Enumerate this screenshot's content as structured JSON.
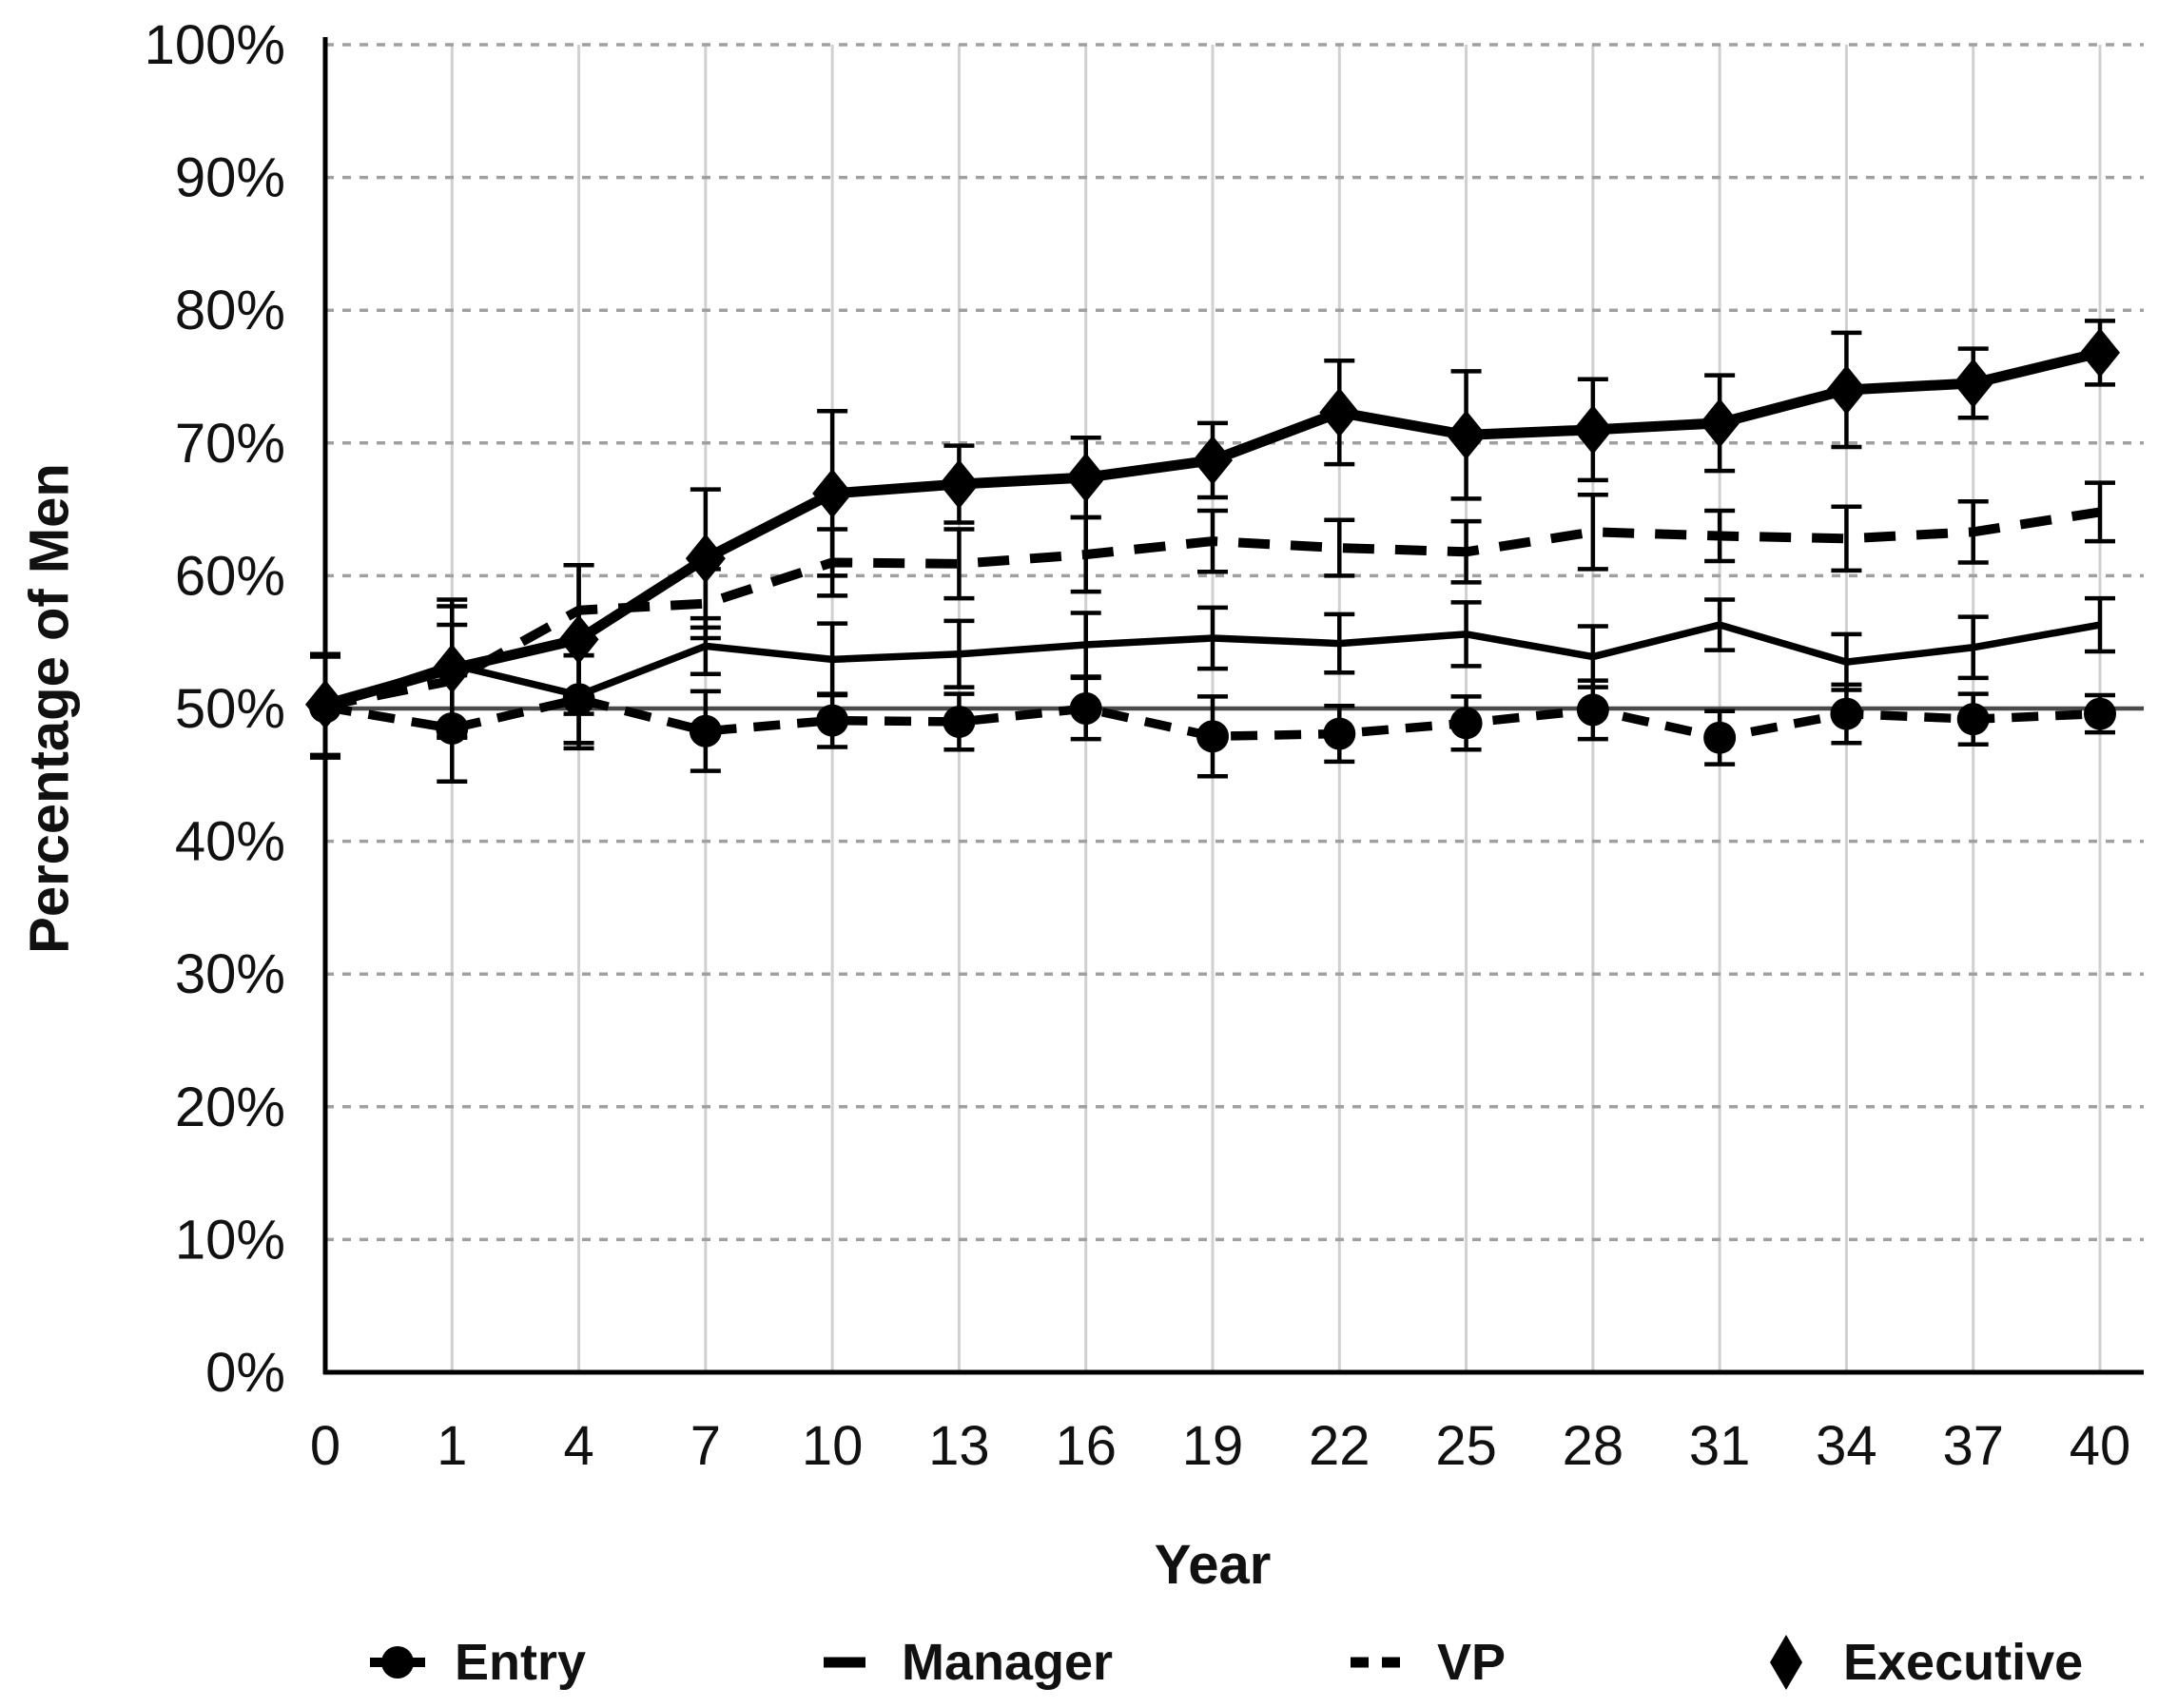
{
  "chart_data": {
    "type": "line",
    "title": "",
    "xlabel": "Year",
    "ylabel": "Percentage of Men",
    "x_axis_type": "categorical",
    "x_categories": [
      "0",
      "1",
      "4",
      "7",
      "10",
      "13",
      "16",
      "19",
      "22",
      "25",
      "28",
      "31",
      "34",
      "37",
      "40"
    ],
    "y_tick_labels": [
      "0%",
      "10%",
      "20%",
      "30%",
      "40%",
      "50%",
      "60%",
      "70%",
      "80%",
      "90%",
      "100%"
    ],
    "ylim": [
      0,
      100
    ],
    "y_step": 10,
    "grid": {
      "horizontal": "dotted",
      "vertical": "solid-light",
      "reference_line_y": 50
    },
    "error_bars": true,
    "legend_position": "bottom",
    "colors": {
      "series": "#000000",
      "v_gridline": "#d0d0d0",
      "h_gridline_dotted": "#a0a0a0",
      "reference_line": "#4a4a4a",
      "axis": "#000000",
      "text": "#111111"
    },
    "series": [
      {
        "name": "Entry",
        "style": "dashed-thick",
        "marker": "circle",
        "values": [
          50.1,
          48.5,
          50.7,
          48.3,
          49.1,
          49.0,
          50.0,
          47.9,
          48.1,
          48.9,
          49.9,
          47.8,
          49.6,
          49.2,
          49.6
        ],
        "errors": [
          3.8,
          4.0,
          3.3,
          3.0,
          2.0,
          2.1,
          2.3,
          3.0,
          2.1,
          2.0,
          2.2,
          2.0,
          2.2,
          1.9,
          1.4
        ]
      },
      {
        "name": "Manager",
        "style": "solid",
        "marker": "none",
        "values": [
          50.2,
          53.3,
          51.0,
          54.7,
          53.7,
          54.1,
          54.8,
          55.3,
          54.9,
          55.6,
          53.9,
          56.3,
          53.5,
          54.6,
          56.3
        ],
        "errors": [
          3.8,
          4.4,
          4.0,
          2.1,
          2.7,
          2.5,
          2.4,
          2.3,
          2.2,
          2.4,
          2.3,
          1.9,
          2.1,
          2.3,
          2.0
        ]
      },
      {
        "name": "VP",
        "style": "dashed",
        "marker": "none",
        "values": [
          50.2,
          52.1,
          57.4,
          57.9,
          61.0,
          60.9,
          61.6,
          62.6,
          62.1,
          61.8,
          63.3,
          63.0,
          62.8,
          63.3,
          64.8
        ],
        "errors": [
          3.8,
          4.2,
          3.4,
          2.6,
          2.5,
          2.6,
          2.8,
          2.3,
          2.1,
          2.3,
          2.8,
          1.9,
          2.4,
          2.3,
          2.2
        ]
      },
      {
        "name": "Executive",
        "style": "solid-thick",
        "marker": "diamond",
        "values": [
          50.3,
          53.0,
          55.2,
          61.3,
          66.2,
          66.9,
          67.4,
          68.7,
          72.3,
          70.6,
          71.0,
          71.5,
          74.0,
          74.5,
          76.8
        ],
        "errors": [
          3.8,
          5.2,
          5.6,
          5.2,
          6.2,
          2.9,
          3.0,
          2.8,
          3.9,
          4.8,
          3.8,
          3.6,
          4.3,
          2.6,
          2.4
        ]
      }
    ]
  }
}
